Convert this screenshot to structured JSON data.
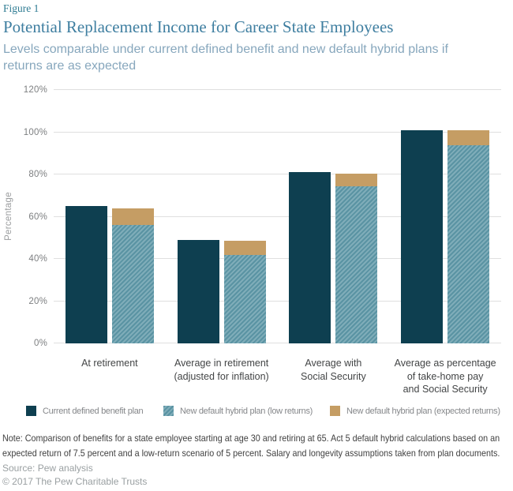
{
  "header": {
    "figure_label": "Figure 1",
    "title": "Potential Replacement Income for Career State Employees",
    "subtitle_lines": [
      "Levels comparable under current defined benefit and new default hybrid plans if",
      "returns are as expected"
    ]
  },
  "chart_data": {
    "type": "bar",
    "title": "Potential Replacement Income for Career State Employees",
    "subtitle": "Levels comparable under current defined benefit and new default hybrid plans if returns are as expected",
    "xlabel": "",
    "ylabel": "Percentage",
    "ylim": [
      0,
      120
    ],
    "yticks": [
      0,
      20,
      40,
      60,
      80,
      100,
      120
    ],
    "ytick_suffix": "%",
    "grid": true,
    "legend_position": "bottom",
    "categories": [
      "At retirement",
      "Average in retirement\n(adjusted for inflation)",
      "Average with\nSocial Security",
      "Average as percentage\nof take-home pay\nand Social Security"
    ],
    "series": [
      {
        "name": "Current defined benefit plan",
        "pattern": "solid",
        "color": "#0e3f50",
        "values": [
          65,
          49,
          81,
          101
        ]
      },
      {
        "name": "New default hybrid plan (low returns)",
        "pattern": "diagonal-hatch",
        "color": "#5a93a3",
        "stripe_color": "#7fadb9",
        "values": [
          56,
          42,
          74.5,
          94
        ]
      },
      {
        "name": "New default hybrid plan (expected returns)",
        "pattern": "solid",
        "color": "#c59d64",
        "values": [
          64,
          48.5,
          80.5,
          101
        ]
      }
    ]
  },
  "footer": {
    "note_lines": [
      "Note: Comparison of benefits for a state employee starting at age 30 and retiring at 65. Act 5 default hybrid calculations based on an",
      "expected return of 7.5 percent and a low-return scenario of 5 percent. Salary and longevity assumptions taken from plan documents."
    ],
    "source": "Source: Pew analysis",
    "copyright": "© 2017 The Pew Charitable Trusts"
  },
  "colors": {
    "figure_label_teal": "#2f7c93",
    "title_teal": "#3e7ea0",
    "subtitle_blue_gray": "#87a7bd",
    "bar_dark_teal": "#0e3f50",
    "bar_teal": "#5a93a3",
    "bar_teal_stripe": "#7fadb9",
    "bar_tan": "#c59d64",
    "gridline_gray": "#dfdfdf",
    "axis_text_gray": "#7d7f81",
    "note_text": "#404040",
    "muted_text": "#9aa0a2"
  }
}
